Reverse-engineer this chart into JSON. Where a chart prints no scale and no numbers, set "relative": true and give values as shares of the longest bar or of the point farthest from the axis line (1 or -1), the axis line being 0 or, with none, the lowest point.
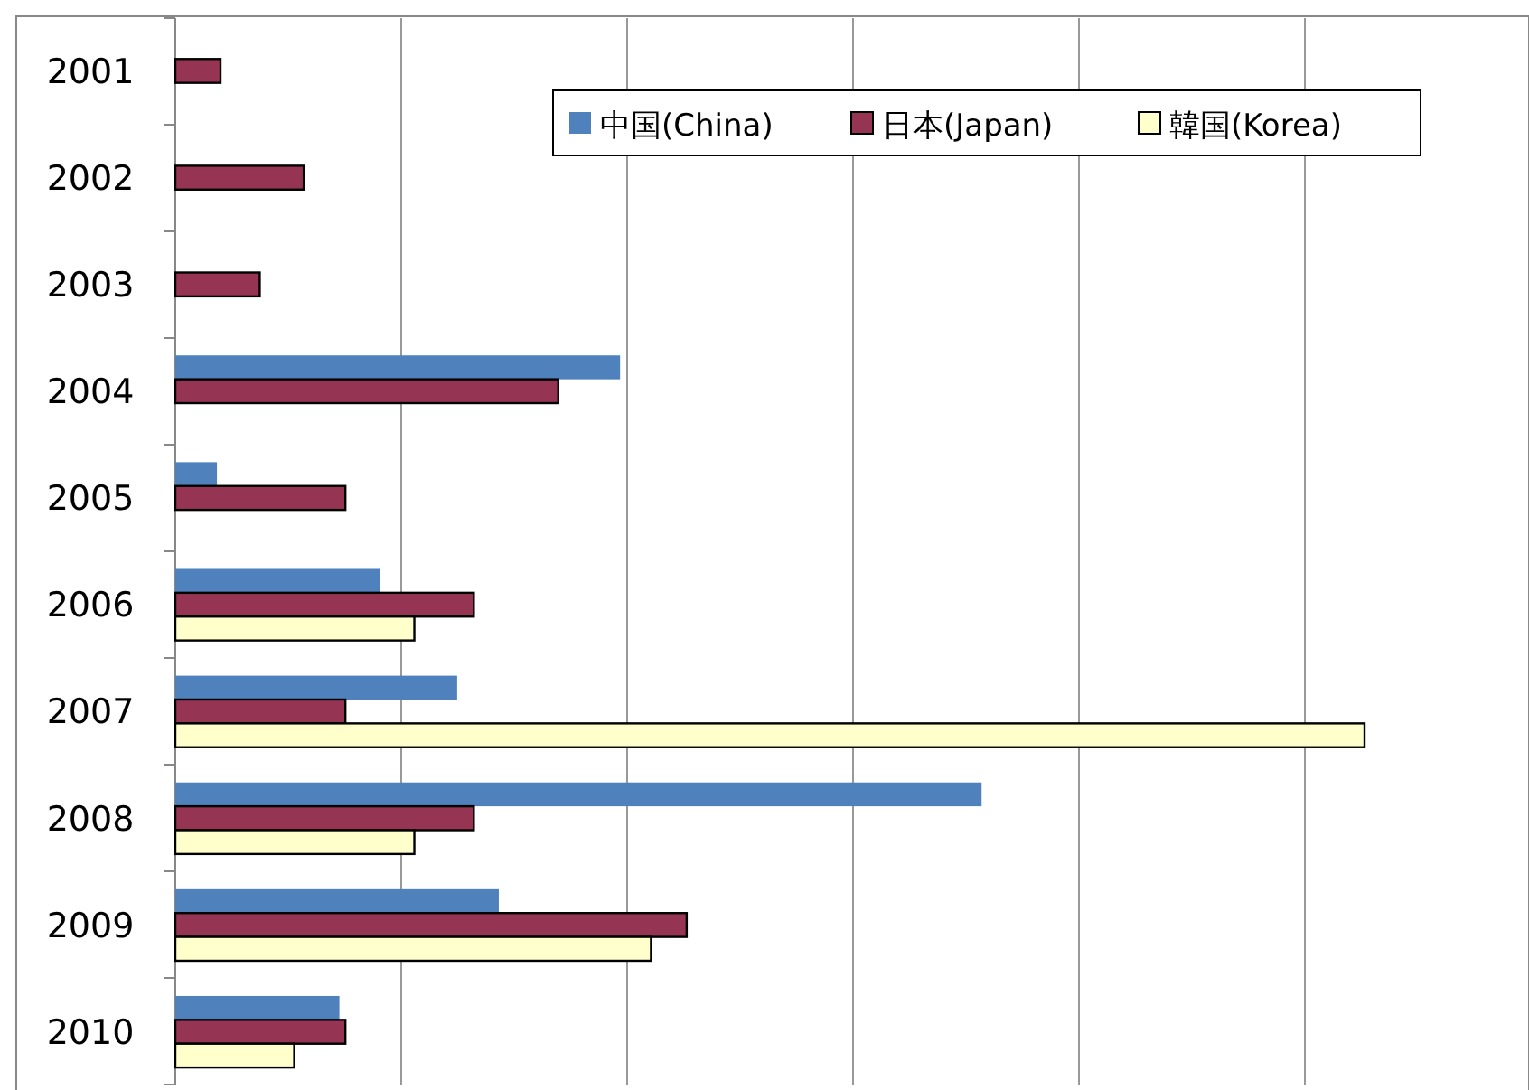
{
  "chart_data": {
    "type": "bar",
    "orientation": "horizontal",
    "relative": true,
    "grid": "x",
    "legend": "top right",
    "categories": [
      "2001",
      "2002",
      "2003",
      "2004",
      "2005",
      "2006",
      "2007",
      "2008",
      "2009",
      "2010"
    ],
    "series": [
      {
        "name": "中国(China)",
        "color": "#4f81bd",
        "values": [
          null,
          null,
          null,
          0.374,
          0.035,
          0.172,
          0.237,
          0.678,
          0.272,
          0.138
        ]
      },
      {
        "name": "日本(Japan)",
        "color": "#953553",
        "values": [
          0.038,
          0.108,
          0.071,
          0.322,
          0.143,
          0.251,
          0.143,
          0.251,
          0.43,
          0.143
        ]
      },
      {
        "name": "韓国(Korea)",
        "color": "#ffffcc",
        "values": [
          null,
          null,
          null,
          null,
          null,
          0.201,
          1,
          0.201,
          0.4,
          0.1
        ]
      }
    ]
  }
}
